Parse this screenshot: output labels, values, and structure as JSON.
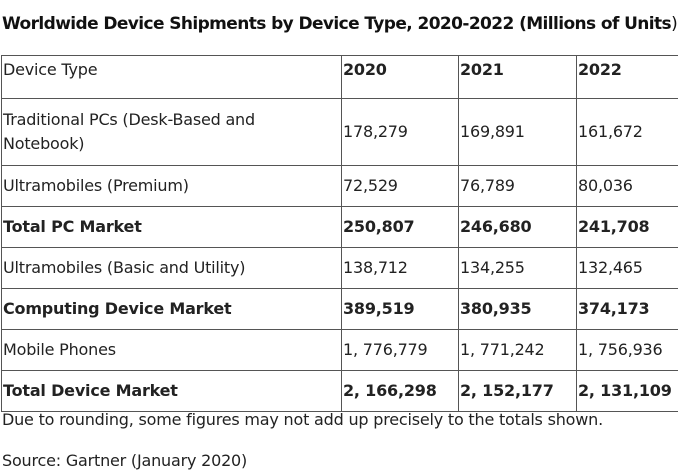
{
  "title": {
    "main": "Worldwide Device Shipments by Device Type, 2020-2022 (Millions of Units",
    "close_paren": ")"
  },
  "table": {
    "headers": [
      "Device Type",
      "2020",
      "2021",
      "2022"
    ],
    "rows": [
      {
        "label": "Traditional PCs (Desk-Based and Notebook)",
        "values": [
          "178,279",
          "169,891",
          "161,672"
        ],
        "bold": false
      },
      {
        "label": "Ultramobiles (Premium)",
        "values": [
          "72,529",
          "76,789",
          "80,036"
        ],
        "bold": false
      },
      {
        "label": "Total PC Market",
        "values": [
          "250,807",
          "246,680",
          "241,708"
        ],
        "bold": true
      },
      {
        "label": "Ultramobiles (Basic and Utility)",
        "values": [
          "138,712",
          "134,255",
          "132,465"
        ],
        "bold": false
      },
      {
        "label": "Computing Device Market",
        "values": [
          "389,519",
          "380,935",
          "374,173"
        ],
        "bold": true
      },
      {
        "label": "Mobile Phones",
        "values": [
          "1, 776,779",
          "1, 771,242",
          "1, 756,936"
        ],
        "bold": false
      },
      {
        "label": "Total Device Market",
        "values": [
          "2, 166,298",
          "2, 152,177",
          "2, 131,109"
        ],
        "bold": true
      }
    ]
  },
  "footnote": "Due to rounding, some figures may not add up precisely to the totals shown.",
  "source": "Source: Gartner (January 2020)"
}
